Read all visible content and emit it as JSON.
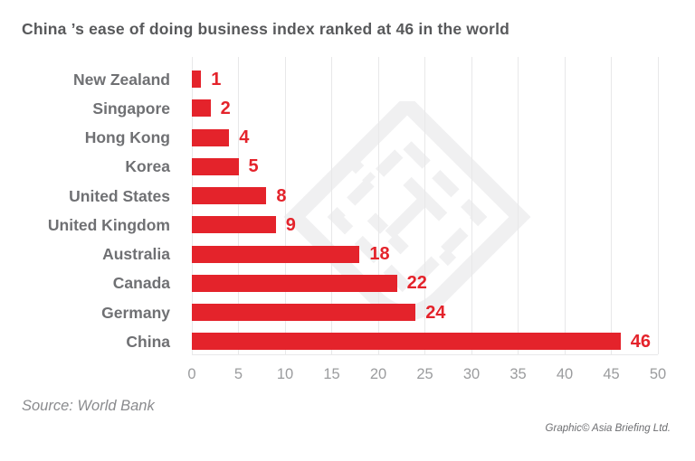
{
  "title": "China ’s ease of doing business index ranked at 46 in the world",
  "source_note": "Source: World Bank",
  "credit_note": "Graphic© Asia Briefing Ltd.",
  "watermark_icon": "asia-briefing-logo-watermark",
  "colors": {
    "bar": "#e4232b",
    "title": "#58595b",
    "category_label": "#6f7073",
    "tick_label": "#9b9c9e",
    "gridline": "#e8e8e9",
    "source": "#8a8b8e",
    "credit": "#6d6e71",
    "watermark": "#f0f0f1",
    "background": "#ffffff"
  },
  "chart_data": {
    "type": "bar",
    "orientation": "horizontal",
    "title": "China ’s ease of doing business index ranked at 46 in the world",
    "categories": [
      "New Zealand",
      "Singapore",
      "Hong Kong",
      "Korea",
      "United States",
      "United Kingdom",
      "Australia",
      "Canada",
      "Germany",
      "China"
    ],
    "values": [
      1,
      2,
      4,
      5,
      8,
      9,
      18,
      22,
      24,
      46
    ],
    "xlabel": "",
    "ylabel": "",
    "xlim": [
      0,
      50
    ],
    "xticks": [
      0,
      5,
      10,
      15,
      20,
      25,
      30,
      35,
      40,
      45,
      50
    ],
    "grid": true,
    "legend": false,
    "value_labels": true
  }
}
